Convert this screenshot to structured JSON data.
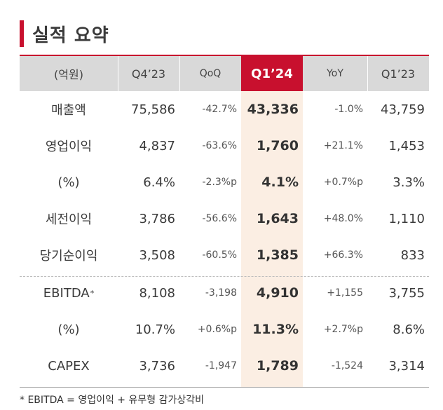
{
  "title": "실적 요약",
  "header": [
    "(억원)",
    "Q4’23",
    "QoQ",
    "Q1’24",
    "YoY",
    "Q1’23"
  ],
  "rows": [
    {
      "label": "매출액",
      "sup": "",
      "q4_23": "75,586",
      "qoq": "-42.7%",
      "q1_24": "43,336",
      "yoy": "-1.0%",
      "q1_23": "43,759"
    },
    {
      "label": "영업이익",
      "sup": "",
      "q4_23": "4,837",
      "qoq": "-63.6%",
      "q1_24": "1,760",
      "yoy": "+21.1%",
      "q1_23": "1,453"
    },
    {
      "label": "(%)",
      "sup": "",
      "q4_23": "6.4%",
      "qoq": "-2.3%p",
      "q1_24": "4.1%",
      "yoy": "+0.7%p",
      "q1_23": "3.3%"
    },
    {
      "label": "세전이익",
      "sup": "",
      "q4_23": "3,786",
      "qoq": "-56.6%",
      "q1_24": "1,643",
      "yoy": "+48.0%",
      "q1_23": "1,110"
    },
    {
      "label": "당기순이익",
      "sup": "",
      "q4_23": "3,508",
      "qoq": "-60.5%",
      "q1_24": "1,385",
      "yoy": "+66.3%",
      "q1_23": "833"
    },
    {
      "label": "EBITDA",
      "sup": "*",
      "q4_23": "8,108",
      "qoq": "-3,198",
      "q1_24": "4,910",
      "yoy": "+1,155",
      "q1_23": "3,755"
    },
    {
      "label": "(%)",
      "sup": "",
      "q4_23": "10.7%",
      "qoq": "+0.6%p",
      "q1_24": "11.3%",
      "yoy": "+2.7%p",
      "q1_23": "8.6%"
    },
    {
      "label": "CAPEX",
      "sup": "",
      "q4_23": "3,736",
      "qoq": "-1,947",
      "q1_24": "1,789",
      "yoy": "-1,524",
      "q1_23": "3,314"
    }
  ],
  "footnote": "* EBITDA = 영업이익 + 유무형 감가상각비",
  "colors": {
    "accent": "#c8102e",
    "highlight": "#fbeee3",
    "header_bg": "#d9d9d9"
  }
}
